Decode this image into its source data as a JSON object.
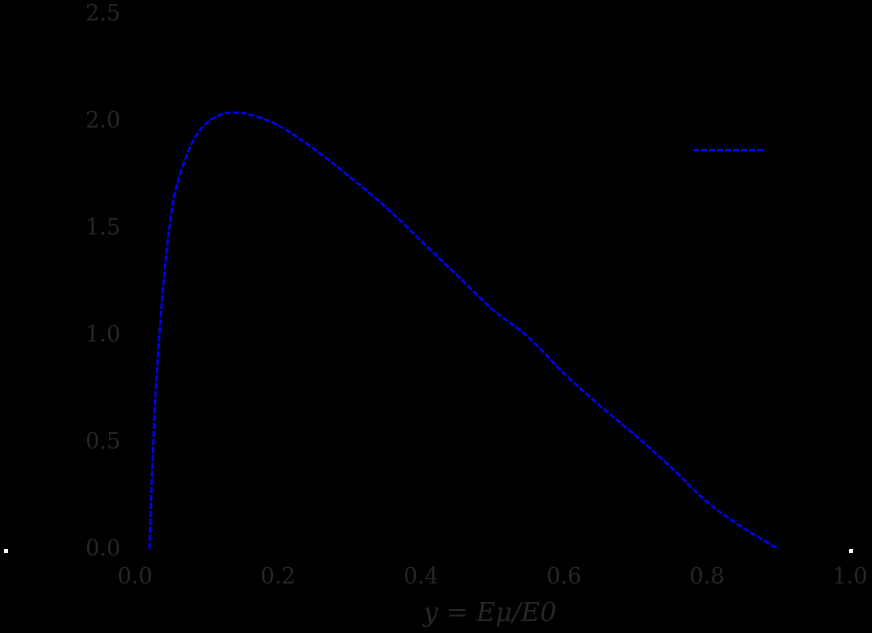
{
  "chart_data": {
    "type": "line",
    "title": "",
    "xlabel": "y = E_μ/E_0",
    "ylabel": "",
    "xlim": [
      0.0,
      1.0
    ],
    "ylim": [
      0.0,
      2.5
    ],
    "xticks": [
      "0.0",
      "0.2",
      "0.4",
      "0.6",
      "0.8",
      "1.0"
    ],
    "yticks": [
      "0.0",
      "0.5",
      "1.0",
      "1.5",
      "2.0",
      "2.5"
    ],
    "grid": false,
    "legend": {
      "position": "upper right",
      "entries": [
        {
          "label": "",
          "style": "dashed",
          "color": "#0000ff"
        }
      ]
    },
    "series": [
      {
        "name": "",
        "color": "#0000ff",
        "style": "dashed",
        "x": [
          0.02,
          0.025,
          0.03,
          0.04,
          0.05,
          0.06,
          0.08,
          0.1,
          0.12,
          0.136,
          0.16,
          0.2,
          0.25,
          0.3,
          0.35,
          0.4,
          0.45,
          0.5,
          0.55,
          0.6,
          0.65,
          0.7,
          0.75,
          0.8,
          0.85,
          0.9
        ],
        "y": [
          0.0,
          0.45,
          0.8,
          1.25,
          1.55,
          1.72,
          1.9,
          1.99,
          2.03,
          2.04,
          2.03,
          1.98,
          1.87,
          1.74,
          1.6,
          1.44,
          1.28,
          1.12,
          0.99,
          0.82,
          0.67,
          0.53,
          0.38,
          0.22,
          0.1,
          0.0
        ]
      }
    ]
  },
  "axes": {
    "x_ticks": [
      "0.0",
      "0.2",
      "0.4",
      "0.6",
      "0.8",
      "1.0"
    ],
    "y_ticks": [
      "0.0",
      "0.5",
      "1.0",
      "1.5",
      "2.0",
      "2.5"
    ],
    "xlabel": "y = Eμ/E0"
  },
  "colors": {
    "background": "#000000",
    "line": "#0000ff",
    "text": "#262626"
  }
}
